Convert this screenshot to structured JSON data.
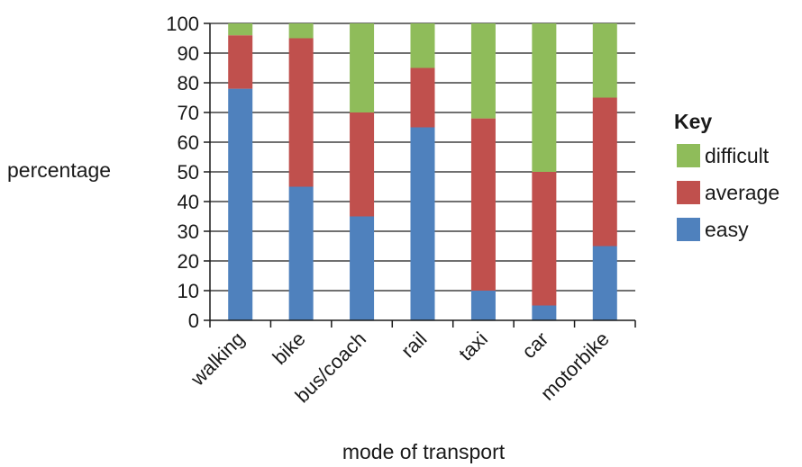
{
  "chart_data": {
    "type": "bar",
    "stacked": true,
    "categories": [
      "walking",
      "bike",
      "bus/coach",
      "rail",
      "taxi",
      "car",
      "motorbike"
    ],
    "series": [
      {
        "name": "easy",
        "values": [
          78,
          45,
          35,
          65,
          10,
          5,
          25
        ],
        "color": "#4f81bd"
      },
      {
        "name": "average",
        "values": [
          18,
          50,
          35,
          20,
          58,
          45,
          50
        ],
        "color": "#c0504d"
      },
      {
        "name": "difficult",
        "values": [
          4,
          5,
          30,
          15,
          32,
          50,
          25
        ],
        "color": "#8fbc5a"
      }
    ],
    "xlabel": "mode of transport",
    "ylabel": "percentage",
    "ylim": [
      0,
      100
    ],
    "yticks": [
      0,
      10,
      20,
      30,
      40,
      50,
      60,
      70,
      80,
      90,
      100
    ],
    "grid": true,
    "legend": {
      "title": "Key",
      "placement": "right",
      "entries": [
        "difficult",
        "average",
        "easy"
      ]
    }
  }
}
